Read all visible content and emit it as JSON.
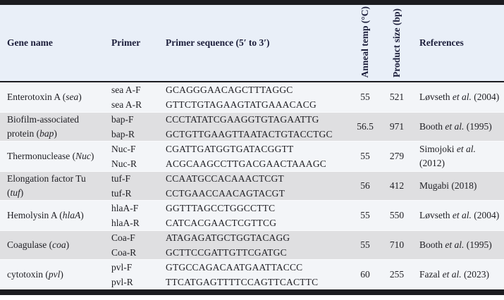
{
  "theme": {
    "bar": "#1c1c20",
    "header_bg": "#e9eff8",
    "header_text": "#1b1d3a",
    "body_text": "#1f1f24",
    "row_light": "#f3f5f8",
    "row_gray": "#dfdfe1"
  },
  "table": {
    "columns": {
      "gene": "Gene name",
      "primer": "Primer",
      "sequence": "Primer sequence (5′ to 3′)",
      "anneal": "Anneal temp (°C)",
      "product": "Product size (bp)",
      "references": "References"
    },
    "rows": [
      {
        "gene_prefix": "Enterotoxin A (",
        "gene_italic": "sea",
        "gene_suffix": ")",
        "primers": [
          "sea A-F",
          "sea A-R"
        ],
        "sequences": [
          "GCAGGGAACAGCTTTAGGC",
          "GTTCTGTAGAAGTATGAAACACG"
        ],
        "anneal_temp": "55",
        "product_size": "521",
        "ref_prefix": "Løvseth ",
        "ref_italic": "et al.",
        "ref_suffix": " (2004)",
        "ref_line2": ""
      },
      {
        "gene_prefix": "Biofilm-associated protein (",
        "gene_italic": "bap",
        "gene_suffix": ")",
        "primers": [
          "bap-F",
          "bap-R"
        ],
        "sequences": [
          "CCCTATATCGAAGGTGTAGAATTG",
          "GCTGTTGAAGTTAATACTGTACCTGC"
        ],
        "anneal_temp": "56.5",
        "product_size": "971",
        "ref_prefix": "Booth ",
        "ref_italic": "et al.",
        "ref_suffix": " (1995)",
        "ref_line2": ""
      },
      {
        "gene_prefix": "Thermonuclease (",
        "gene_italic": "Nuc",
        "gene_suffix": ")",
        "primers": [
          "Nuc-F",
          "Nuc-R"
        ],
        "sequences": [
          "CGATTGATGGTGATACGGTT",
          "ACGCAAGCCTTGACGAACTAAAGC"
        ],
        "anneal_temp": "55",
        "product_size": "279",
        "ref_prefix": "Simojoki ",
        "ref_italic": "et al.",
        "ref_suffix": "",
        "ref_line2": "(2012)"
      },
      {
        "gene_prefix": "Elongation factor Tu (",
        "gene_italic": "tuf",
        "gene_suffix": ")",
        "primers": [
          "tuf-F",
          "tuf-R"
        ],
        "sequences": [
          "CCAATGCCACAAACTCGT",
          "CCTGAACCAACAGTACGT"
        ],
        "anneal_temp": "56",
        "product_size": "412",
        "ref_prefix": "Mugabi (2018)",
        "ref_italic": "",
        "ref_suffix": "",
        "ref_line2": ""
      },
      {
        "gene_prefix": "Hemolysin A (",
        "gene_italic": "hlaA",
        "gene_suffix": ")",
        "primers": [
          "hlaA-F",
          "hlaA-R"
        ],
        "sequences": [
          "GGTTTAGCCTGGCCTTC",
          "CATCACGAACTCGTTCG"
        ],
        "anneal_temp": "55",
        "product_size": "550",
        "ref_prefix": "Løvseth ",
        "ref_italic": "et al.",
        "ref_suffix": " (2004)",
        "ref_line2": ""
      },
      {
        "gene_prefix": "Coagulase (",
        "gene_italic": "coa",
        "gene_suffix": ")",
        "primers": [
          "Coa-F",
          "Coa-R"
        ],
        "sequences": [
          "ATAGAGATGCTGGTACAGG",
          "GCTTCCGATTGTTCGATGC"
        ],
        "anneal_temp": "55",
        "product_size": "710",
        "ref_prefix": "Booth ",
        "ref_italic": "et al.",
        "ref_suffix": " (1995)",
        "ref_line2": ""
      },
      {
        "gene_prefix": "cytotoxin (",
        "gene_italic": "pvl",
        "gene_suffix": ")",
        "primers": [
          "pvl-F",
          "pvl-R"
        ],
        "sequences": [
          "GTGCCAGACAATGAATTACCC",
          "TTCATGAGTTTTCCAGTTCACTTC"
        ],
        "anneal_temp": "60",
        "product_size": "255",
        "ref_prefix": "Fazal ",
        "ref_italic": "et al.",
        "ref_suffix": " (2023)",
        "ref_line2": ""
      }
    ]
  }
}
